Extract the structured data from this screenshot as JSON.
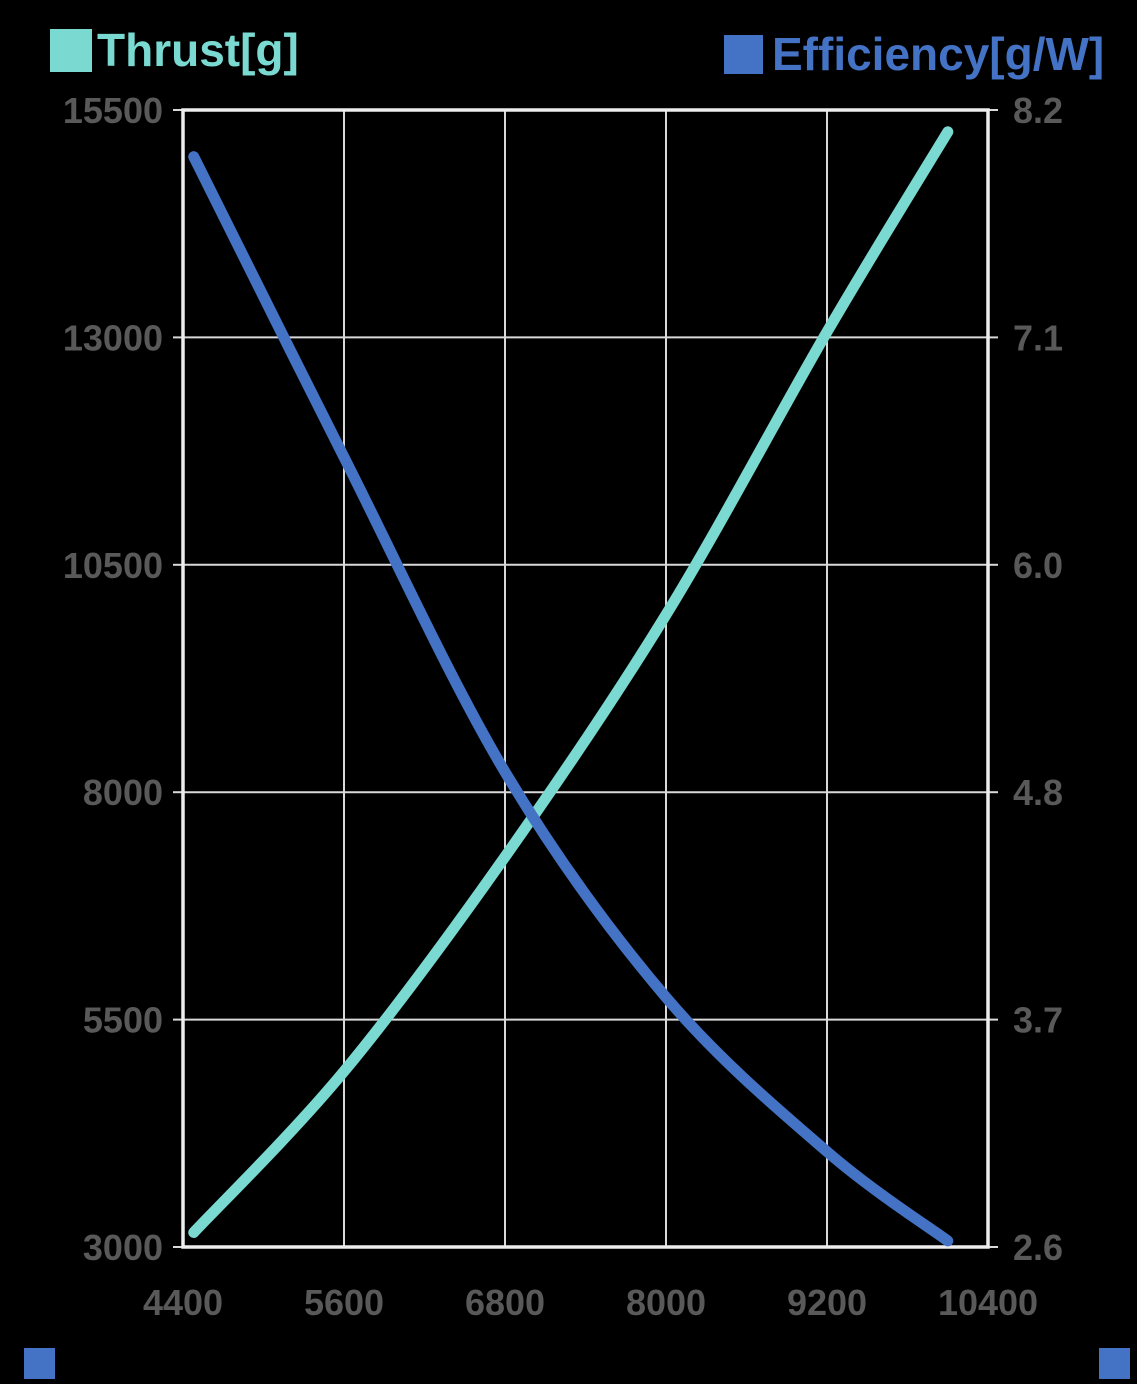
{
  "legend": {
    "thrust_label": "Thrust[g]",
    "efficiency_label": "Efficiency[g/W]"
  },
  "colors": {
    "thrust": "#7ADAD1",
    "efficiency": "#4472C4",
    "axis_text": "#595959",
    "gridline": "#D9D9D9",
    "border": "#EDEDED",
    "background": "#000000"
  },
  "chart_data": {
    "type": "line",
    "title": "",
    "grid": true,
    "legend_position": "top",
    "x_axis": {
      "min": 4400,
      "max": 10400,
      "tick_labels": [
        "4400",
        "5600",
        "6800",
        "8000",
        "9200",
        "10400"
      ]
    },
    "y_left_axis": {
      "title": "Thrust[g]",
      "min": 3000,
      "max": 15500,
      "tick_labels": [
        "3000",
        "5500",
        "8000",
        "10500",
        "13000",
        "15500"
      ]
    },
    "y_right_axis": {
      "title": "Efficiency[g/W]",
      "min": 2.6,
      "max": 8.2,
      "tick_labels": [
        "2.6",
        "3.7",
        "4.8",
        "6.0",
        "7.1",
        "8.2"
      ]
    },
    "series": [
      {
        "name": "Thrust[g]",
        "axis": "left",
        "color": "#7ADAD1",
        "smooth": true,
        "x": [
          4480,
          5600,
          6800,
          8000,
          9200,
          10100
        ],
        "values": [
          3160,
          4930,
          7290,
          9950,
          13060,
          15260
        ]
      },
      {
        "name": "Efficiency[g/W]",
        "axis": "right",
        "color": "#4472C4",
        "smooth": true,
        "x": [
          4480,
          5600,
          6800,
          8000,
          9200,
          10100
        ],
        "values": [
          7.97,
          6.49,
          4.94,
          3.83,
          3.07,
          2.63
        ]
      }
    ]
  }
}
